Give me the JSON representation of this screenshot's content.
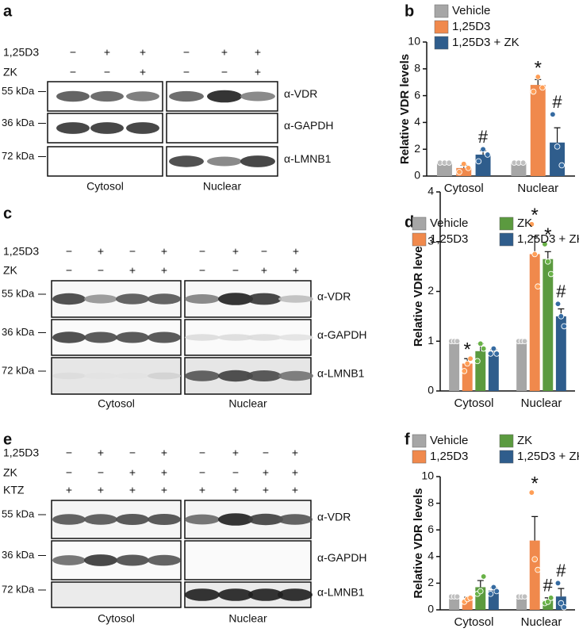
{
  "blots": [
    {
      "panel_label": "a",
      "conditions": [
        {
          "label": "1,25D3",
          "signs": [
            "−",
            "+",
            "+",
            "−",
            "+",
            "+"
          ]
        },
        {
          "label": "ZK",
          "signs": [
            "−",
            "−",
            "+",
            "−",
            "−",
            "+"
          ]
        }
      ],
      "rows": [
        {
          "mw": "55 kDa",
          "antibody": "α-VDR"
        },
        {
          "mw": "36 kDa",
          "antibody": "α-GAPDH"
        },
        {
          "mw": "72 kDa",
          "antibody": "α-LMNB1"
        }
      ],
      "groups": [
        "Cytosol",
        "Nuclear"
      ]
    },
    {
      "panel_label": "c",
      "conditions": [
        {
          "label": "1,25D3",
          "signs": [
            "−",
            "+",
            "−",
            "+",
            "−",
            "+",
            "−",
            "+"
          ]
        },
        {
          "label": "ZK",
          "signs": [
            "−",
            "−",
            "+",
            "+",
            "−",
            "−",
            "+",
            "+"
          ]
        }
      ],
      "rows": [
        {
          "mw": "55 kDa",
          "antibody": "α-VDR"
        },
        {
          "mw": "36 kDa",
          "antibody": "α-GAPDH"
        },
        {
          "mw": "72 kDa",
          "antibody": "α-LMNB1"
        }
      ],
      "groups": [
        "Cytosol",
        "Nuclear"
      ]
    },
    {
      "panel_label": "e",
      "conditions": [
        {
          "label": "1,25D3",
          "signs": [
            "−",
            "+",
            "−",
            "+",
            "−",
            "+",
            "−",
            "+"
          ]
        },
        {
          "label": "ZK",
          "signs": [
            "−",
            "−",
            "+",
            "+",
            "−",
            "−",
            "+",
            "+"
          ]
        },
        {
          "label": "KTZ",
          "signs": [
            "+",
            "+",
            "+",
            "+",
            "+",
            "+",
            "+",
            "+"
          ]
        }
      ],
      "rows": [
        {
          "mw": "55 kDa",
          "antibody": "α-VDR"
        },
        {
          "mw": "36 kDa",
          "antibody": "α-GAPDH"
        },
        {
          "mw": "72 kDa",
          "antibody": "α-LMNB1"
        }
      ],
      "groups": [
        "Cytosol",
        "Nuclear"
      ]
    }
  ],
  "chart_data": [
    {
      "type": "bar",
      "panel_label": "b",
      "ylabel": "Relative VDR levels",
      "categories": [
        "Cytosol",
        "Nuclear"
      ],
      "ylim": [
        0,
        10
      ],
      "yticks": [
        0,
        2,
        4,
        6,
        8,
        10
      ],
      "legend_columns": 1,
      "series": [
        {
          "name": "Vehicle",
          "color": "#a6a6a6",
          "values": [
            1,
            1
          ],
          "errors": [
            0,
            0
          ],
          "points": [
            [
              1,
              1,
              1
            ],
            [
              1,
              1,
              1
            ]
          ],
          "markers": [
            null,
            null
          ]
        },
        {
          "name": "1,25D3",
          "color": "#f0894c",
          "values": [
            0.6,
            6.8
          ],
          "errors": [
            0.2,
            0.4
          ],
          "points": [
            [
              0.3,
              0.9,
              0.6
            ],
            [
              6.3,
              7.4,
              6.6
            ]
          ],
          "markers": [
            null,
            "*"
          ]
        },
        {
          "name": "1,25D3 + ZK",
          "color": "#2f5d8c",
          "values": [
            1.6,
            2.5
          ],
          "errors": [
            0.3,
            1.1
          ],
          "points": [
            [
              1.1,
              2.0,
              1.6
            ],
            [
              4.6,
              2.2,
              0.8
            ]
          ],
          "markers": [
            "#",
            "#"
          ]
        }
      ]
    },
    {
      "type": "bar",
      "panel_label": "d",
      "ylabel": "Relative VDR levels",
      "categories": [
        "Cytosol",
        "Nuclear"
      ],
      "ylim": [
        0,
        4
      ],
      "yticks": [
        0,
        1,
        2,
        3,
        4
      ],
      "legend_columns": 2,
      "series": [
        {
          "name": "Vehicle",
          "color": "#a6a6a6",
          "values": [
            1,
            1
          ],
          "errors": [
            0,
            0
          ],
          "points": [
            [
              1,
              1,
              1
            ],
            [
              1,
              1,
              1
            ]
          ],
          "markers": [
            null,
            null
          ]
        },
        {
          "name": "1,25D3",
          "color": "#f0894c",
          "values": [
            0.55,
            2.75
          ],
          "errors": [
            0.1,
            0.35
          ],
          "points": [
            [
              0.4,
              0.55,
              0.65
            ],
            [
              3.35,
              2.75,
              2.1
            ]
          ],
          "markers": [
            "*",
            "*"
          ]
        },
        {
          "name": "ZK",
          "color": "#5b9a3f",
          "values": [
            0.8,
            2.65
          ],
          "errors": [
            0.15,
            0.15
          ],
          "points": [
            [
              0.6,
              0.95,
              0.85
            ],
            [
              2.95,
              2.6,
              2.35
            ]
          ],
          "markers": [
            null,
            "*"
          ]
        },
        {
          "name": "1,25D3 + ZK",
          "color": "#2f5d8c",
          "values": [
            0.78,
            1.5
          ],
          "errors": [
            0.05,
            0.15
          ],
          "points": [
            [
              0.75,
              0.85,
              0.75
            ],
            [
              1.75,
              1.5,
              1.3
            ]
          ],
          "markers": [
            null,
            "#"
          ]
        }
      ]
    },
    {
      "type": "bar",
      "panel_label": "f",
      "ylabel": "Relative VDR levels",
      "categories": [
        "Cytosol",
        "Nuclear"
      ],
      "ylim": [
        0,
        10
      ],
      "yticks": [
        0,
        2,
        4,
        6,
        8,
        10
      ],
      "legend_columns": 2,
      "series": [
        {
          "name": "Vehicle",
          "color": "#a6a6a6",
          "values": [
            1,
            1
          ],
          "errors": [
            0,
            0
          ],
          "points": [
            [
              1,
              1,
              1
            ],
            [
              1,
              1,
              1
            ]
          ],
          "markers": [
            null,
            null
          ]
        },
        {
          "name": "1,25D3",
          "color": "#f0894c",
          "values": [
            0.75,
            5.2
          ],
          "errors": [
            0.2,
            1.8
          ],
          "points": [
            [
              0.6,
              0.8,
              0.9
            ],
            [
              8.8,
              3.8,
              3.0
            ]
          ],
          "markers": [
            null,
            "*"
          ]
        },
        {
          "name": "ZK",
          "color": "#5b9a3f",
          "values": [
            1.7,
            0.7
          ],
          "errors": [
            0.5,
            0.2
          ],
          "points": [
            [
              1.2,
              1.4,
              2.5
            ],
            [
              0.5,
              0.6,
              0.9
            ]
          ],
          "markers": [
            null,
            "#"
          ]
        },
        {
          "name": "1,25D3 + ZK",
          "color": "#2f5d8c",
          "values": [
            1.45,
            1.0
          ],
          "errors": [
            0.2,
            0.6
          ],
          "points": [
            [
              1.2,
              1.7,
              1.4
            ],
            [
              2.0,
              0.5,
              0.2
            ]
          ],
          "markers": [
            null,
            "#"
          ]
        }
      ]
    }
  ]
}
